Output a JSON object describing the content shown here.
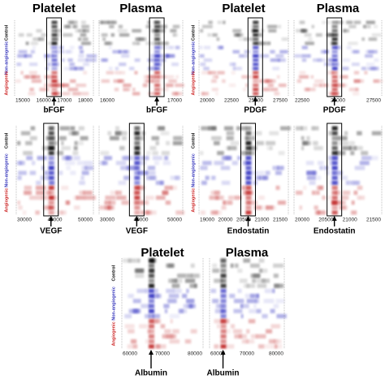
{
  "groups": [
    "Control",
    "Non-angiogenic",
    "Angiogenic"
  ],
  "panels": [
    {
      "gels": [
        {
          "title": "Platelet",
          "xticks": [
            "15000",
            "16000",
            "17000",
            "18000"
          ],
          "label": "bFGF"
        },
        {
          "title": "Plasma",
          "xticks": [
            "16000",
            "17000"
          ],
          "label": "bFGF"
        }
      ]
    },
    {
      "gels": [
        {
          "title": "Platelet",
          "xticks": [
            "20000",
            "22500",
            "25000",
            "27500"
          ],
          "label": "PDGF"
        },
        {
          "title": "Plasma",
          "xticks": [
            "22500",
            "25000",
            "27500"
          ],
          "label": "PDGF"
        }
      ]
    },
    {
      "gels": [
        {
          "xticks": [
            "30000",
            "40000",
            "50000"
          ],
          "label": "VEGF"
        },
        {
          "xticks": [
            "30000",
            "40000",
            "50000"
          ],
          "label": "VEGF"
        }
      ]
    },
    {
      "gels": [
        {
          "xticks": [
            "19000",
            "20000",
            "20500",
            "21000",
            "21500"
          ],
          "label": "Endostatin"
        },
        {
          "xticks": [
            "20000",
            "20500",
            "21000",
            "21500"
          ],
          "label": "Endostatin"
        }
      ]
    },
    {
      "gels": [
        {
          "title": "Platelet",
          "xticks": [
            "60000",
            "70000",
            "80000"
          ],
          "label": "Albumin"
        },
        {
          "title": "Plasma",
          "xticks": [
            "60000",
            "70000",
            "80000"
          ],
          "label": "Albumin"
        }
      ]
    }
  ]
}
